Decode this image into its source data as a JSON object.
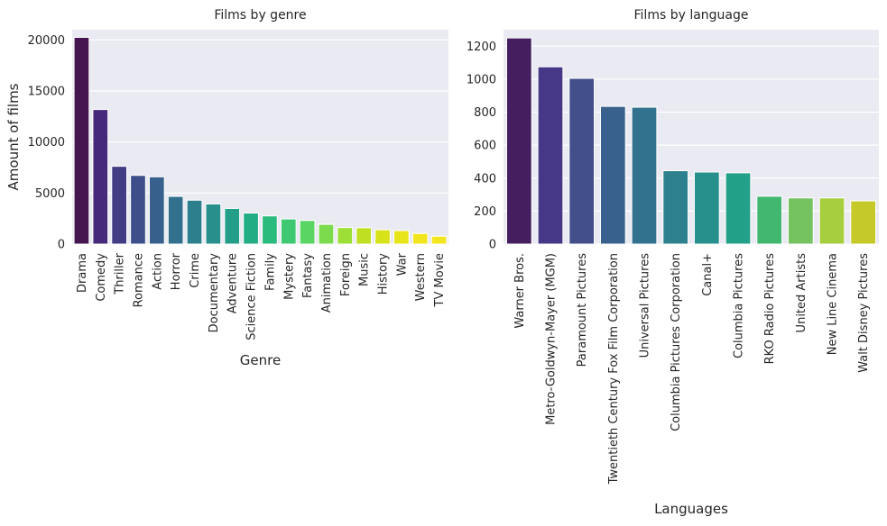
{
  "chart_data": [
    {
      "type": "bar",
      "title": "Films by genre",
      "xlabel": "Genre",
      "ylabel": "Amount of films",
      "ylim": [
        0,
        21000
      ],
      "yticks": [
        0,
        5000,
        10000,
        15000,
        20000
      ],
      "grid": true,
      "categories": [
        "Drama",
        "Comedy",
        "Thriller",
        "Romance",
        "Action",
        "Horror",
        "Crime",
        "Documentary",
        "Adventure",
        "Science Fiction",
        "Family",
        "Mystery",
        "Fantasy",
        "Animation",
        "Foreign",
        "Music",
        "History",
        "War",
        "Western",
        "TV Movie"
      ],
      "values": [
        20250,
        13180,
        7620,
        6730,
        6590,
        4670,
        4300,
        3930,
        3490,
        3040,
        2760,
        2460,
        2310,
        1930,
        1620,
        1600,
        1400,
        1320,
        1040,
        770
      ],
      "colors": [
        "#44154f",
        "#46297a",
        "#423d84",
        "#3d4f8a",
        "#38608c",
        "#32708e",
        "#2d7f8e",
        "#288f8d",
        "#239e89",
        "#22ad84",
        "#2bbb7d",
        "#3ec871",
        "#5ad462",
        "#7bdb4d",
        "#9ddf37",
        "#bfe022",
        "#d7e21a",
        "#e8e41a",
        "#f1e51d",
        "#f4e61e"
      ]
    },
    {
      "type": "bar",
      "title": "Films by language",
      "xlabel": "Languages",
      "ylabel": "",
      "ylim": [
        0,
        1300
      ],
      "yticks": [
        0,
        200,
        400,
        600,
        800,
        1000,
        1200
      ],
      "grid": true,
      "categories": [
        "Warner Bros.",
        "Metro-Goldwyn-Mayer (MGM)",
        "Paramount Pictures",
        "Twentieth Century Fox Film Corporation",
        "Universal Pictures",
        "Columbia Pictures Corporation",
        "Canal+",
        "Columbia Pictures",
        "RKO Radio Pictures",
        "United Artists",
        "New Line Cinema",
        "Walt Disney Pictures"
      ],
      "values": [
        1250,
        1075,
        1005,
        835,
        830,
        445,
        437,
        432,
        290,
        280,
        280,
        262
      ],
      "colors": [
        "#441f5f",
        "#463887",
        "#424f8a",
        "#38628d",
        "#33728e",
        "#2d818e",
        "#27908c",
        "#23a088",
        "#41b76f",
        "#74c260",
        "#a6ce3f",
        "#c6c92a"
      ]
    }
  ]
}
